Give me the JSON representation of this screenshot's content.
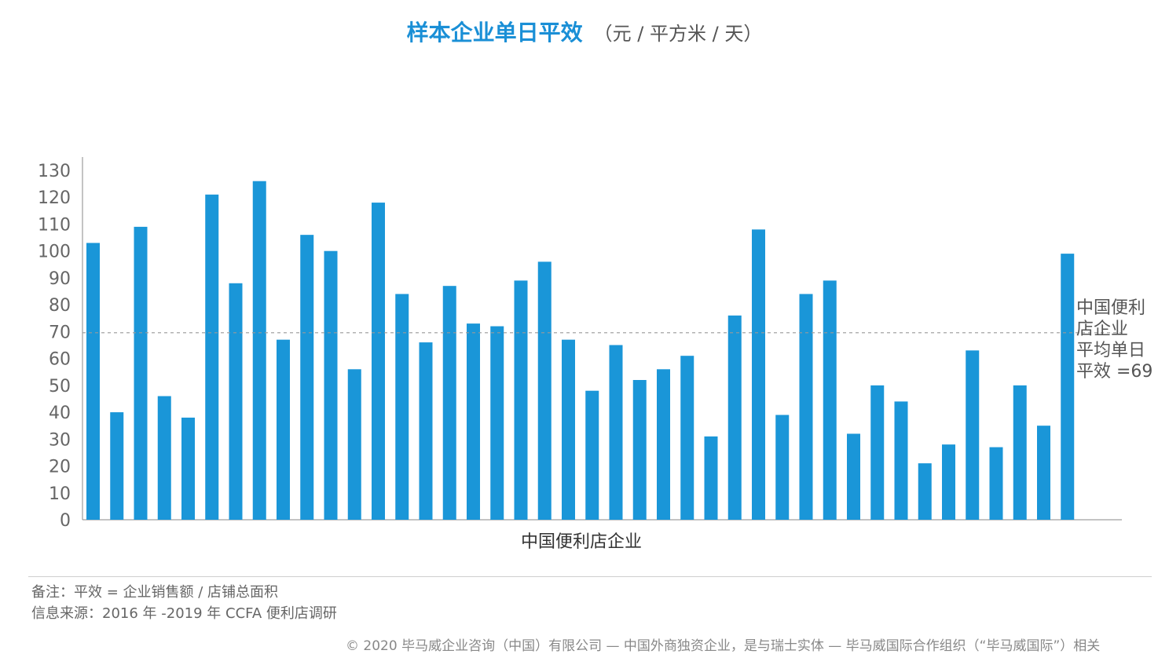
{
  "title": "样本企业单日平效",
  "title_unit": "（元 / 平方米 / 天）",
  "colors": {
    "bar": "#1a96d8",
    "title": "#1a8fd6",
    "text": "#555555",
    "refline": "#999999"
  },
  "notes": {
    "remark": "备注：平效 = 企业销售额 / 店铺总面积",
    "source": "信息来源：2016 年 -2019 年 CCFA 便利店调研"
  },
  "copyright": "© 2020 毕马威企业咨询（中国）有限公司 — 中国外商独资企业，是与瑞士实体 — 毕马威国际合作组织（“毕马威国际”）相关",
  "chart_data": {
    "type": "bar",
    "xlabel": "中国便利店企业",
    "ylabel": "",
    "ylim": [
      0,
      130
    ],
    "yticks": [
      0,
      10,
      20,
      30,
      40,
      50,
      60,
      70,
      80,
      90,
      100,
      110,
      120,
      130
    ],
    "grid": false,
    "values": [
      103,
      40,
      109,
      46,
      38,
      121,
      88,
      126,
      67,
      106,
      100,
      56,
      118,
      84,
      66,
      87,
      73,
      72,
      89,
      96,
      67,
      48,
      65,
      52,
      56,
      61,
      31,
      76,
      108,
      39,
      84,
      89,
      32,
      50,
      44,
      21,
      28,
      63,
      27,
      50,
      35,
      99
    ],
    "reference_line": {
      "value": 69,
      "label_lines": [
        "中国便利",
        "店企业",
        "平均单日",
        "平效 =69"
      ]
    }
  }
}
